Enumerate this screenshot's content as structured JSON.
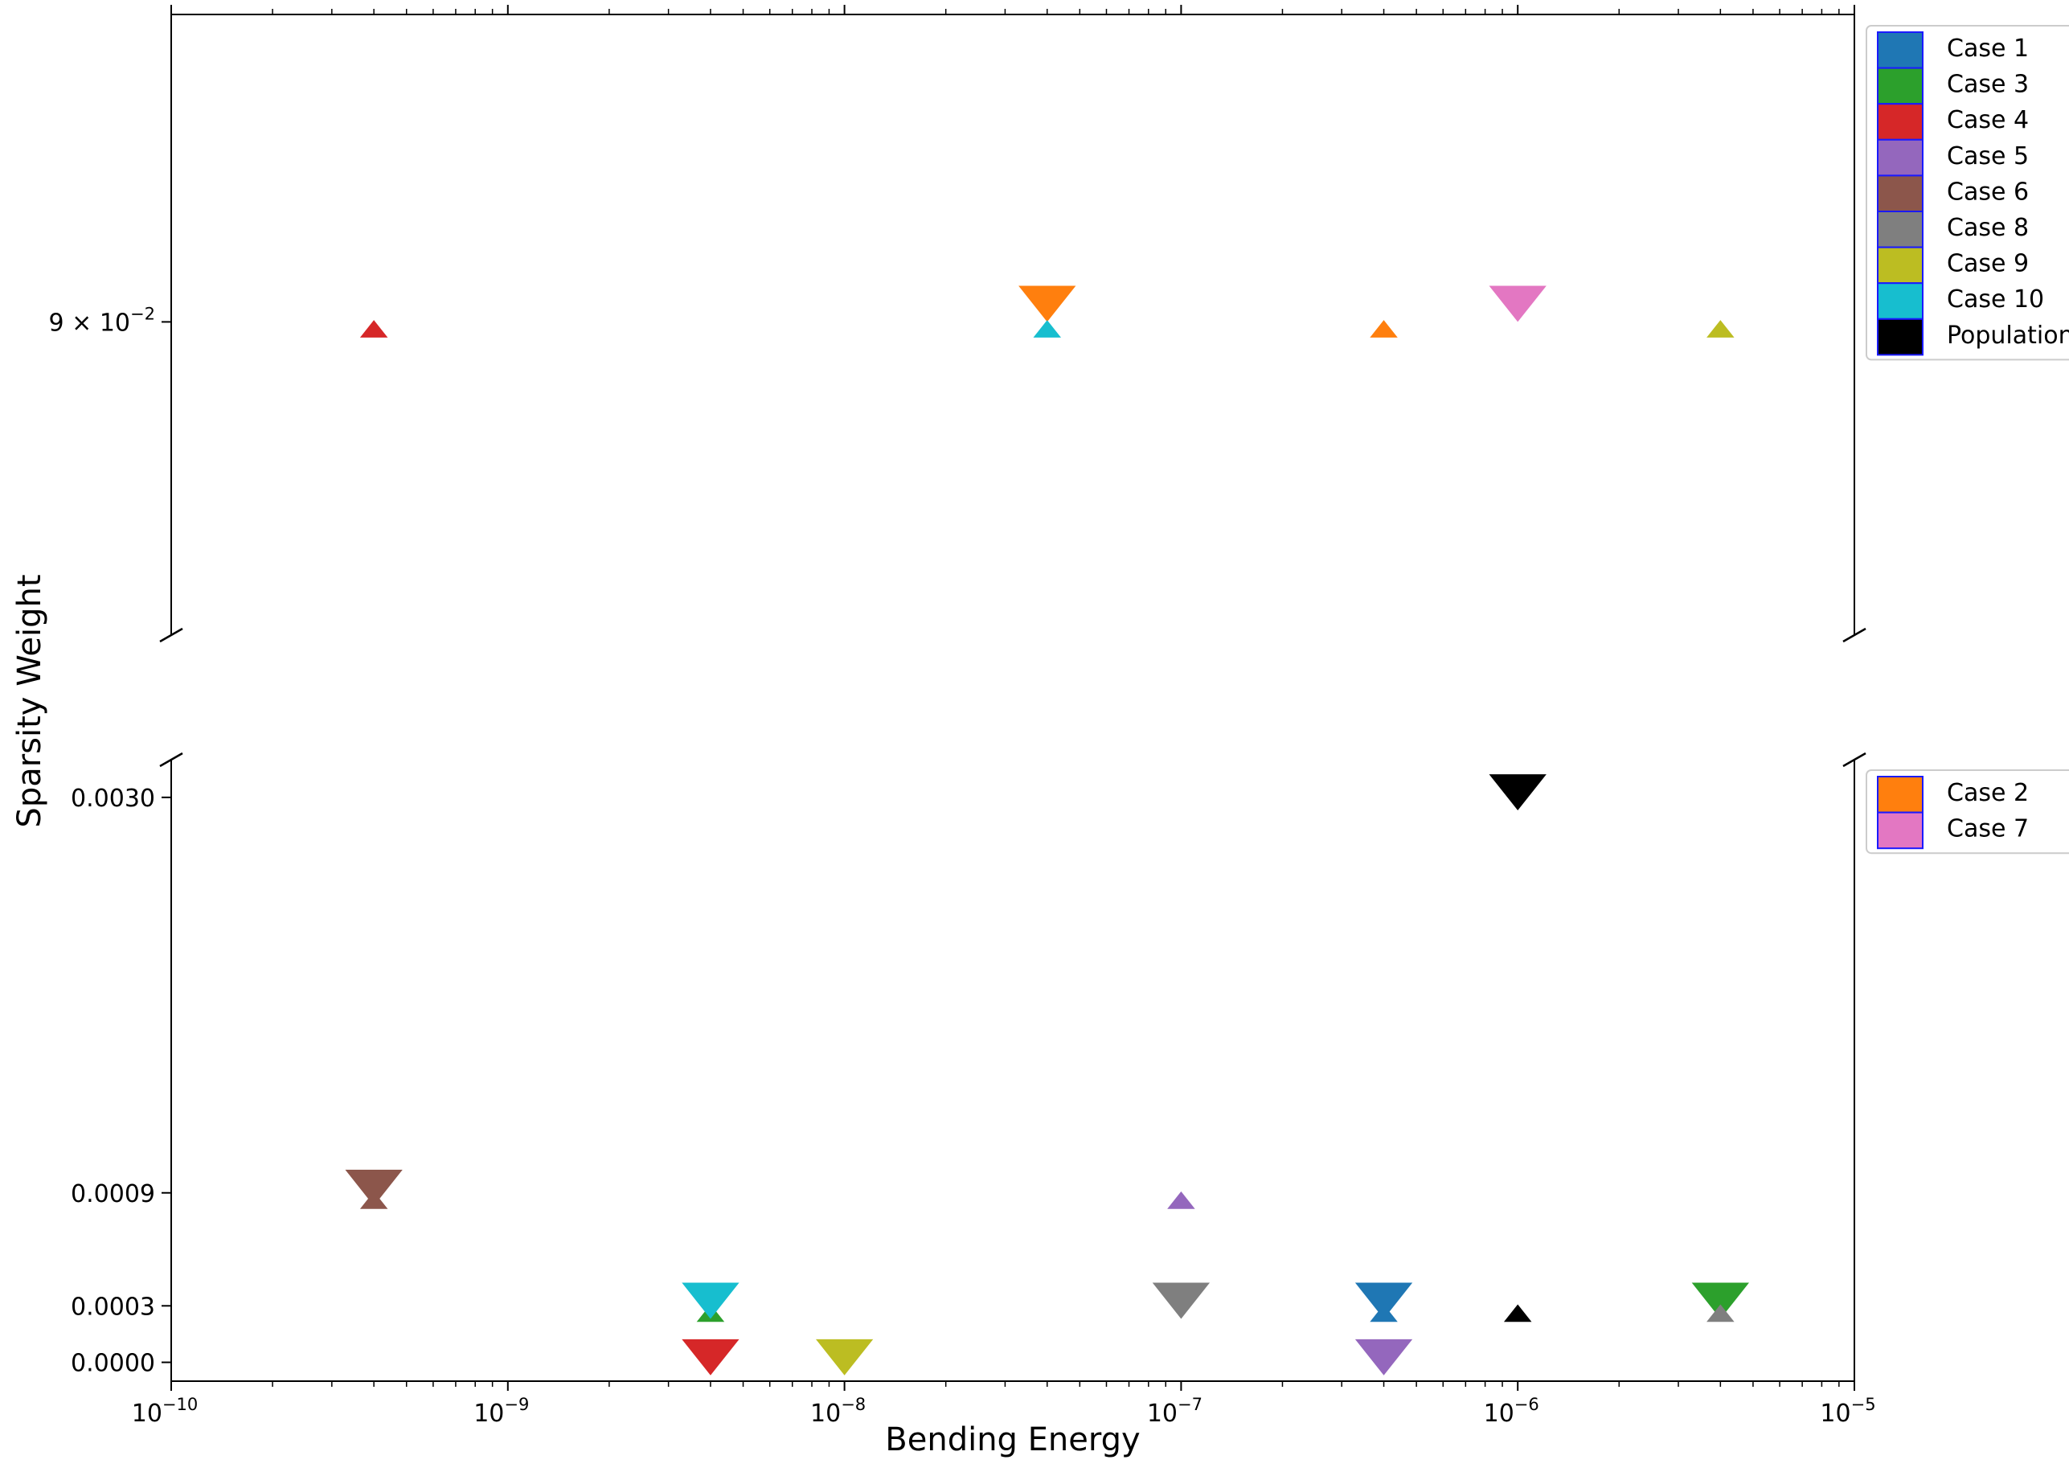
{
  "chart_data": {
    "type": "scatter",
    "xlabel": "Bending Energy",
    "ylabel": "Sparsity Weight",
    "xscale": "log",
    "xlim": [
      1e-10,
      1e-05
    ],
    "x_ticks": [
      {
        "value": 1e-10,
        "base": "10",
        "exp": "−10"
      },
      {
        "value": 1e-09,
        "base": "10",
        "exp": "−9"
      },
      {
        "value": 1e-08,
        "base": "10",
        "exp": "−8"
      },
      {
        "value": 1e-07,
        "base": "10",
        "exp": "−7"
      },
      {
        "value": 1e-06,
        "base": "10",
        "exp": "−6"
      },
      {
        "value": 1e-05,
        "base": "10",
        "exp": "−5"
      }
    ],
    "broken_y_axis": true,
    "top_panel": {
      "yscale": "log",
      "ylim": [
        0.0833,
        0.0971
      ],
      "y_ticks": [
        {
          "value": 0.09,
          "mant": "9 × 10",
          "exp": "−2"
        }
      ]
    },
    "bottom_panel": {
      "yscale": "linear",
      "ylim": [
        -0.0001,
        0.0032
      ],
      "y_ticks": [
        {
          "value": 0.0,
          "label": "0.0000"
        },
        {
          "value": 0.0003,
          "label": "0.0003"
        },
        {
          "value": 0.0009,
          "label": "0.0009"
        },
        {
          "value": 0.003,
          "label": "0.0030"
        }
      ]
    },
    "marker_legend_note": "large downward triangles and small upward triangles",
    "series": [
      {
        "name": "Case 1",
        "color": "#1f77b4",
        "points": [
          {
            "x": 4e-07,
            "y": 0.00035,
            "marker": "down"
          },
          {
            "x": 4e-07,
            "y": 0.00025,
            "marker": "up"
          }
        ]
      },
      {
        "name": "Case 2",
        "color": "#ff7f0e",
        "points": [
          {
            "x": 4e-08,
            "y": 0.0905,
            "marker": "down"
          },
          {
            "x": 4e-07,
            "y": 0.0898,
            "marker": "up"
          }
        ]
      },
      {
        "name": "Case 3",
        "color": "#2ca02c",
        "points": [
          {
            "x": 4e-06,
            "y": 0.00035,
            "marker": "down"
          },
          {
            "x": 4e-09,
            "y": 0.00025,
            "marker": "up"
          }
        ]
      },
      {
        "name": "Case 4",
        "color": "#d62728",
        "points": [
          {
            "x": 4e-09,
            "y": 5e-05,
            "marker": "down"
          },
          {
            "x": 4e-10,
            "y": 0.0898,
            "marker": "up"
          }
        ]
      },
      {
        "name": "Case 5",
        "color": "#9467bd",
        "points": [
          {
            "x": 4e-07,
            "y": 5e-05,
            "marker": "down"
          },
          {
            "x": 1e-07,
            "y": 0.00085,
            "marker": "up"
          }
        ]
      },
      {
        "name": "Case 6",
        "color": "#8c564b",
        "points": [
          {
            "x": 4e-10,
            "y": 0.00095,
            "marker": "down"
          },
          {
            "x": 4e-10,
            "y": 0.00085,
            "marker": "up"
          }
        ]
      },
      {
        "name": "Case 7",
        "color": "#e377c2",
        "points": [
          {
            "x": 1e-06,
            "y": 0.0905,
            "marker": "down"
          }
        ]
      },
      {
        "name": "Case 8",
        "color": "#7f7f7f",
        "points": [
          {
            "x": 1e-07,
            "y": 0.00035,
            "marker": "down"
          },
          {
            "x": 4e-06,
            "y": 0.00025,
            "marker": "up"
          }
        ]
      },
      {
        "name": "Case 9",
        "color": "#bcbd22",
        "points": [
          {
            "x": 1e-08,
            "y": 5e-05,
            "marker": "down"
          },
          {
            "x": 4e-06,
            "y": 0.0898,
            "marker": "up"
          }
        ]
      },
      {
        "name": "Case 10",
        "color": "#17becf",
        "points": [
          {
            "x": 4e-09,
            "y": 0.00035,
            "marker": "down"
          },
          {
            "x": 4e-08,
            "y": 0.0898,
            "marker": "up"
          }
        ]
      },
      {
        "name": "Population",
        "color": "#000000",
        "points": [
          {
            "x": 1e-06,
            "y": 0.00305,
            "marker": "down"
          },
          {
            "x": 1e-06,
            "y": 0.00025,
            "marker": "up"
          }
        ]
      }
    ],
    "legends": [
      {
        "placement": "upper-right-outside-top-panel",
        "entries": [
          "Case 1",
          "Case 3",
          "Case 4",
          "Case 5",
          "Case 6",
          "Case 8",
          "Case 9",
          "Case 10",
          "Population"
        ]
      },
      {
        "placement": "upper-right-outside-bottom-panel",
        "entries": [
          "Case 2",
          "Case 7"
        ]
      }
    ],
    "grid": false
  }
}
